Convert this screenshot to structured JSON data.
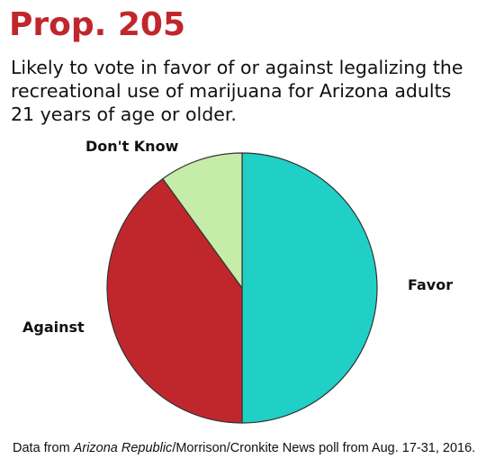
{
  "chart_data": {
    "type": "pie",
    "title": "Prop. 205",
    "subtitle": "Likely to vote in favor of or against legalizing the recreational use of marijuana for Arizona adults 21 years of age or older.",
    "slices": [
      {
        "label": "Favor",
        "value": 50,
        "color": "#20cfc6"
      },
      {
        "label": "Against",
        "value": 40,
        "color": "#c0272d"
      },
      {
        "label": "Don't Know",
        "value": 10,
        "color": "#c5eca8"
      }
    ],
    "start_angle": "12 o'clock",
    "direction": "clockwise",
    "edge_color": "#333333"
  },
  "source": {
    "prefix": "Data from ",
    "publication": "Arizona Republic",
    "suffix": "/Morrison/Cronkite News poll from Aug. 17-31, 2016."
  }
}
